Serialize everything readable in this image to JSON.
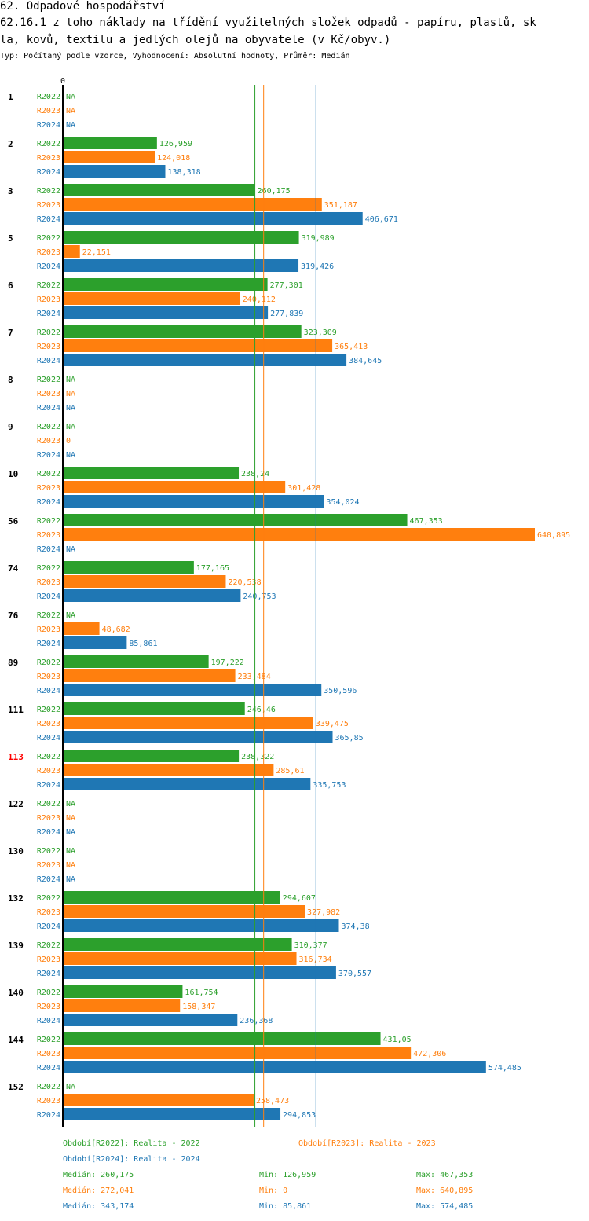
{
  "header": {
    "title_line1": "62. Odpadové hospodářství",
    "title_line2": "62.16.1 z toho náklady na třídění využitelných složek odpadů - papíru, plastů, sk",
    "title_line3": "la, kovů, textilu a jedlých olejů na obyvatele (v Kč/obyv.)",
    "subtitle": "Typ: Počítaný podle vzorce, Vyhodnocení: Absolutní hodnoty, Průměr: Medián"
  },
  "colors": {
    "R2022": "#2ca02c",
    "R2023": "#ff7f0e",
    "R2024": "#1f77b4",
    "highlight_group": "#ff0000",
    "axis": "#000000"
  },
  "chart_data": {
    "type": "bar",
    "orientation": "horizontal",
    "title": "62.16.1 z toho náklady na třídění využitelných složek odpadů - papíru, plastů, skla, kovů, textilu a jedlých olejů na obyvatele (v Kč/obyv.)",
    "x_tick_label": "0",
    "xlim": [
      0,
      640.895
    ],
    "series_names": [
      "R2022",
      "R2023",
      "R2024"
    ],
    "highlighted_category": "113",
    "categories": [
      "1",
      "2",
      "3",
      "5",
      "6",
      "7",
      "8",
      "9",
      "10",
      "56",
      "74",
      "76",
      "89",
      "111",
      "113",
      "122",
      "130",
      "132",
      "139",
      "140",
      "144",
      "152"
    ],
    "series": [
      {
        "name": "R2022",
        "values": [
          null,
          126.959,
          260.175,
          319.989,
          277.301,
          323.309,
          null,
          null,
          238.24,
          467.353,
          177.165,
          null,
          197.222,
          246.46,
          238.322,
          null,
          null,
          294.607,
          310.377,
          161.754,
          431.05,
          null
        ],
        "labels": [
          "NA",
          "126,959",
          "260,175",
          "319,989",
          "277,301",
          "323,309",
          "NA",
          "NA",
          "238,24",
          "467,353",
          "177,165",
          "NA",
          "197,222",
          "246,46",
          "238,322",
          "NA",
          "NA",
          "294,607",
          "310,377",
          "161,754",
          "431,05",
          "NA"
        ]
      },
      {
        "name": "R2023",
        "values": [
          null,
          124.018,
          351.187,
          22.151,
          240.112,
          365.413,
          null,
          0,
          301.428,
          640.895,
          220.538,
          48.682,
          233.484,
          339.475,
          285.61,
          null,
          null,
          327.982,
          316.734,
          158.347,
          472.306,
          258.473
        ],
        "labels": [
          "NA",
          "124,018",
          "351,187",
          "22,151",
          "240,112",
          "365,413",
          "NA",
          "0",
          "301,428",
          "640,895",
          "220,538",
          "48,682",
          "233,484",
          "339,475",
          "285,61",
          "NA",
          "NA",
          "327,982",
          "316,734",
          "158,347",
          "472,306",
          "258,473"
        ]
      },
      {
        "name": "R2024",
        "values": [
          null,
          138.318,
          406.671,
          319.426,
          277.839,
          384.645,
          null,
          null,
          354.024,
          null,
          240.753,
          85.861,
          350.596,
          365.85,
          335.753,
          null,
          null,
          374.38,
          370.557,
          236.368,
          574.485,
          294.853
        ],
        "labels": [
          "NA",
          "138,318",
          "406,671",
          "319,426",
          "277,839",
          "384,645",
          "NA",
          "NA",
          "354,024",
          "NA",
          "240,753",
          "85,861",
          "350,596",
          "365,85",
          "335,753",
          "NA",
          "NA",
          "374,38",
          "370,557",
          "236,368",
          "574,485",
          "294,853"
        ]
      }
    ],
    "medians": [
      {
        "name": "R2022",
        "value": 260.175
      },
      {
        "name": "R2023",
        "value": 272.041
      },
      {
        "name": "R2024",
        "value": 343.174
      }
    ]
  },
  "legend": {
    "r2022": "Období[R2022]: Realita - 2022",
    "r2023": "Období[R2023]: Realita - 2023",
    "r2024": "Období[R2024]: Realita - 2024"
  },
  "stats": {
    "r2022": {
      "median": "Medián: 260,175",
      "min": "Min: 126,959",
      "max": "Max: 467,353"
    },
    "r2023": {
      "median": "Medián: 272,041",
      "min": "Min: 0",
      "max": "Max: 640,895"
    },
    "r2024": {
      "median": "Medián: 343,174",
      "min": "Min: 85,861",
      "max": "Max: 574,485"
    }
  }
}
